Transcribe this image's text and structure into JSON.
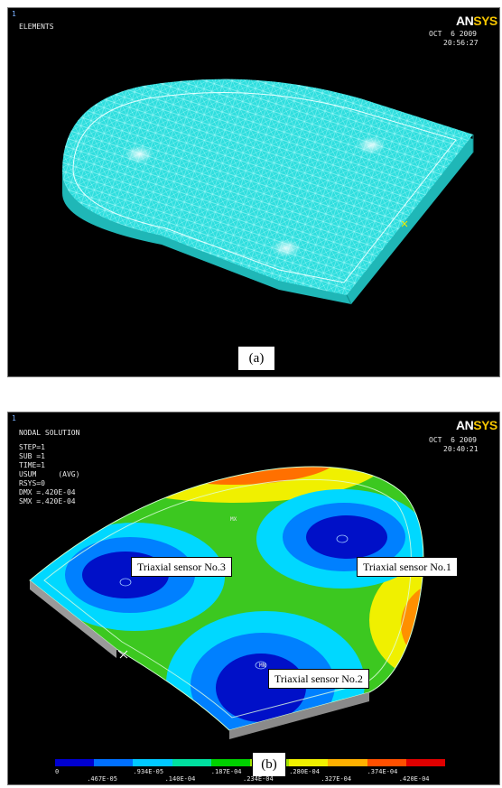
{
  "panel_a": {
    "window_number": "1",
    "mode_label": "ELEMENTS",
    "date": "OCT  6 2009",
    "time": "20:56:27",
    "logo": {
      "an": "AN",
      "sys": "SYS"
    },
    "caption": "(a)"
  },
  "panel_b": {
    "window_number": "1",
    "info_lines": [
      "NODAL SOLUTION",
      "STEP=1",
      "SUB =1",
      "TIME=1",
      "USUM     (AVG)",
      "RSYS=0",
      "DMX =.420E-04",
      "SMX =.420E-04"
    ],
    "date": "OCT  6 2009",
    "time": "20:40:21",
    "logo": {
      "an": "AN",
      "sys": "SYS"
    },
    "caption": "(b)",
    "sensors": [
      "Triaxial sensor No.3",
      "Triaxial sensor No.1",
      "Triaxial sensor No.2"
    ],
    "mx_label": "MX",
    "mn_label": "MN",
    "legend_top": [
      "0",
      ".934E-05",
      ".187E-04",
      ".280E-04",
      ".374E-04"
    ],
    "legend_bottom": [
      ".467E-05",
      ".140E-04",
      ".234E-04",
      ".327E-04",
      ".420E-04"
    ],
    "legend_colors": [
      "#0000d0",
      "#0070ff",
      "#00c8ff",
      "#00e0a0",
      "#00d000",
      "#a0e000",
      "#f0f000",
      "#ffb000",
      "#ff5000",
      "#e00000"
    ]
  }
}
